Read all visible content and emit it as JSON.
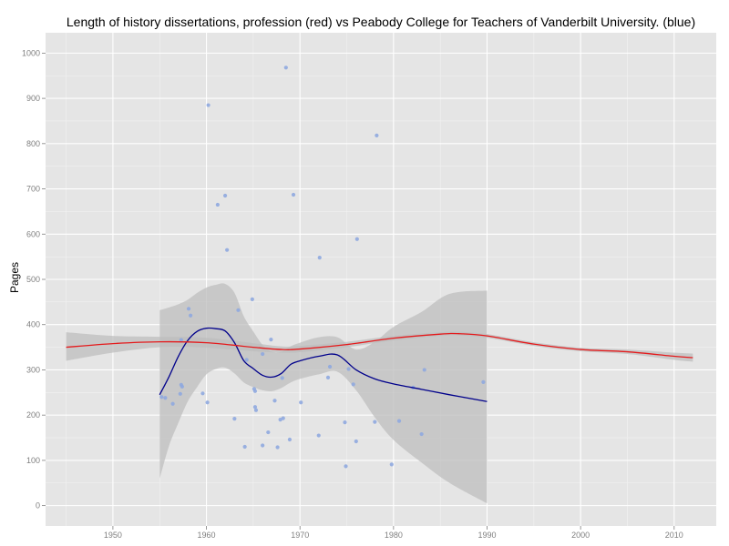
{
  "chart_data": {
    "type": "scatter",
    "title": "Length of history dissertations, profession (red) vs Peabody College for Teachers of Vanderbilt University. (blue)",
    "xlabel": "",
    "ylabel": "Pages",
    "xlim": [
      1942.8,
      2014.5
    ],
    "ylim": [
      -45,
      1045
    ],
    "xticks": [
      1950,
      1960,
      1970,
      1980,
      1990,
      2000,
      2010
    ],
    "yticks": [
      0,
      100,
      200,
      300,
      400,
      500,
      600,
      700,
      800,
      900,
      1000
    ],
    "grid": true,
    "colors": {
      "panel": "#e5e5e5",
      "grid_major": "#ffffff",
      "grid_minor": "#f2f2f2",
      "points": "#8fa9df",
      "profession_line": "#e41a1c",
      "peabody_line": "#00008b",
      "ribbon": "#bdbdbd"
    },
    "series": [
      {
        "name": "Peabody",
        "kind": "points",
        "points": [
          [
            1955.2,
            240
          ],
          [
            1955.6,
            238
          ],
          [
            1956.4,
            225
          ],
          [
            1957.2,
            247
          ],
          [
            1957.3,
            267
          ],
          [
            1957.4,
            263
          ],
          [
            1957.3,
            366
          ],
          [
            1958.1,
            435
          ],
          [
            1958.3,
            420
          ],
          [
            1959.6,
            248
          ],
          [
            1960.1,
            228
          ],
          [
            1960.2,
            885
          ],
          [
            1961.2,
            665
          ],
          [
            1962.0,
            685
          ],
          [
            1962.2,
            565
          ],
          [
            1963.0,
            192
          ],
          [
            1963.4,
            432
          ],
          [
            1964.1,
            130
          ],
          [
            1964.3,
            322
          ],
          [
            1964.9,
            456
          ],
          [
            1965.1,
            258
          ],
          [
            1965.2,
            253
          ],
          [
            1965.3,
            211
          ],
          [
            1965.2,
            218
          ],
          [
            1966.0,
            133
          ],
          [
            1966.0,
            335
          ],
          [
            1966.6,
            162
          ],
          [
            1966.9,
            367
          ],
          [
            1967.3,
            232
          ],
          [
            1967.6,
            129
          ],
          [
            1967.9,
            190
          ],
          [
            1968.1,
            282
          ],
          [
            1968.2,
            193
          ],
          [
            1968.5,
            968
          ],
          [
            1968.9,
            146
          ],
          [
            1969.3,
            687
          ],
          [
            1970.1,
            228
          ],
          [
            1972.0,
            155
          ],
          [
            1972.1,
            548
          ],
          [
            1973.0,
            283
          ],
          [
            1973.2,
            307
          ],
          [
            1974.8,
            184
          ],
          [
            1974.9,
            87
          ],
          [
            1975.2,
            302
          ],
          [
            1975.7,
            268
          ],
          [
            1976.0,
            142
          ],
          [
            1976.1,
            589
          ],
          [
            1978.0,
            185
          ],
          [
            1978.2,
            818
          ],
          [
            1979.8,
            91
          ],
          [
            1980.6,
            187
          ],
          [
            1982.1,
            261
          ],
          [
            1983.0,
            158
          ],
          [
            1983.3,
            300
          ],
          [
            1989.6,
            273
          ]
        ]
      },
      {
        "name": "Peabody (smooth)",
        "kind": "line",
        "x": [
          1955,
          1956,
          1957,
          1958,
          1959,
          1960,
          1961,
          1962,
          1963,
          1964,
          1965,
          1966,
          1967,
          1968,
          1969,
          1970,
          1972,
          1974,
          1976,
          1978,
          1980,
          1983,
          1986,
          1990
        ],
        "y": [
          245,
          285,
          330,
          365,
          385,
          392,
          391,
          386,
          360,
          320,
          303,
          288,
          284,
          292,
          312,
          320,
          330,
          333,
          300,
          280,
          269,
          257,
          245,
          230
        ],
        "ci_lower": [
          60,
          132,
          183,
          230,
          262,
          290,
          302,
          305,
          292,
          272,
          262,
          255,
          253,
          260,
          272,
          280,
          290,
          296,
          255,
          195,
          145,
          95,
          50,
          5
        ],
        "ci_upper": [
          432,
          438,
          445,
          455,
          470,
          482,
          488,
          490,
          470,
          418,
          385,
          355,
          340,
          340,
          352,
          360,
          372,
          372,
          345,
          362,
          395,
          428,
          468,
          475
        ]
      },
      {
        "name": "Profession (smooth)",
        "kind": "line",
        "x": [
          1945,
          1950,
          1955,
          1960,
          1965,
          1968,
          1970,
          1975,
          1980,
          1985,
          1987,
          1990,
          1995,
          2000,
          2005,
          2010,
          2012
        ],
        "y": [
          350,
          358,
          362,
          360,
          350,
          345,
          346,
          356,
          370,
          379,
          380,
          375,
          357,
          345,
          340,
          330,
          327
        ],
        "ci_lower": [
          320,
          338,
          350,
          349,
          341,
          338,
          339,
          350,
          365,
          375,
          376,
          371,
          353,
          341,
          335,
          322,
          318
        ],
        "ci_upper": [
          383,
          375,
          373,
          371,
          359,
          352,
          353,
          362,
          375,
          383,
          384,
          379,
          361,
          349,
          345,
          338,
          336
        ]
      }
    ]
  }
}
